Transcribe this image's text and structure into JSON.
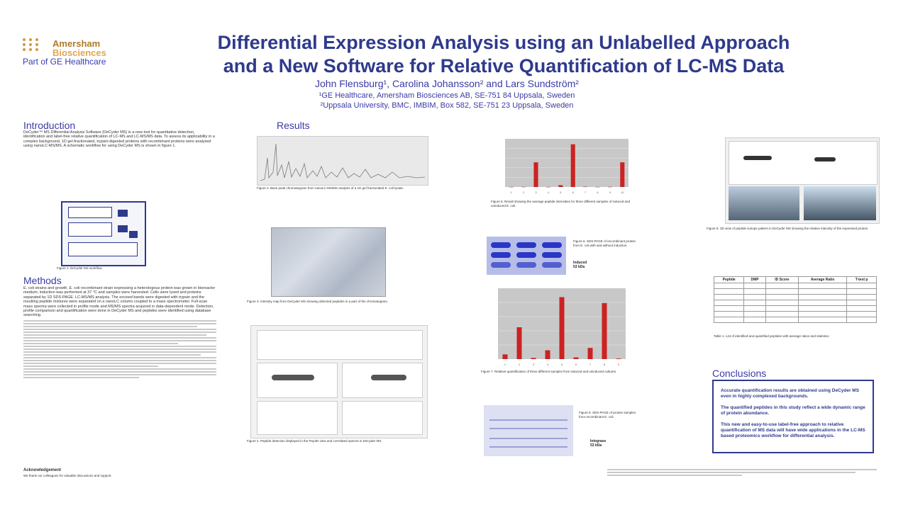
{
  "logo": {
    "name": "Amersham",
    "sub": "Biosciences",
    "ge": "Part of GE Healthcare"
  },
  "title_line1": "Differential Expression Analysis using an Unlabelled Approach",
  "title_line2": "and a New Software for Relative Quantification of LC-MS Data",
  "authors": "John Flensburg¹, Carolina Johansson² and Lars Sundström²",
  "affiliation1": "¹GE Healthcare, Amersham Biosciences AB, SE-751 84 Uppsala, Sweden",
  "affiliation2": "²Uppsala University, BMC, IMBIM, Box 582, SE-751 23 Uppsala, Sweden",
  "sections": {
    "introduction": "Introduction",
    "methods": "Methods",
    "results": "Results",
    "conclusions": "Conclusions",
    "acknowledgement": "Acknowledgement"
  },
  "intro_text": "DeCyder™ MS Differential Analysis Software (DeCyder MS) is a new tool for quantitative detection, identification and label-free relative quantification of LC-MS and LC-MS/MS data. To assess its applicability in a complex background, 1D gel-fractionated, trypsin-digested proteins with recombinant proteins were analysed using nanoLC-MS/MS. A schematic workflow for using DeCyder MS is shown in figure 1.",
  "figure1_caption": "Figure 1. DeCyder MS workflow.",
  "methods_text": "E. coli strains and growth. E. coli recombinant strain expressing a heterologous protein was grown in bioreactor medium; induction was performed at 37 °C and samples were harvested. Cells were lysed and proteins separated by 1D SDS-PAGE. LC-MS/MS analysis. The excised bands were digested with trypsin and the resulting peptide mixtures were separated on a nanoLC column coupled to a mass spectrometer. Full-scan mass spectra were collected in profile mode and MS/MS spectra acquired in data-dependent mode. Detection, profile comparison and quantification were done in DeCyder MS and peptides were identified using database searching.",
  "acknowledgement_text": "We thank our colleagues for valuable discussions and support.",
  "figure_captions": {
    "fig2": "Figure 2. Base peak chromatogram from nanoLC-MS/MS analysis of a 1D gel fractionated E. coli lysate.",
    "fig3": "Figure 3. Intensity map from DeCyder MS showing detected peptides in a part of the chromatogram.",
    "fig4": "Figure 4. Peptide detection displayed in the Pep3D view and correlated spectra in DeCyder MS.",
    "fig5": "Figure 5. Result showing the average peptide intensities for three different samples of induced and uninduced E. coli.",
    "fig6": "Figure 6. SDS-PAGE of recombinant protein from E. coli with and without induction.",
    "fig7": "Figure 7. Relative quantification of three different samples from induced and uninduced cultures.",
    "fig8": "Figure 8. SDS-PAGE of protein samples from recombinant E. coli.",
    "fig9": "Figure 9. 3D view of peptide isotope pattern in DeCyder MS showing the relative intensity of the expressed protein.",
    "table1": "Table 1. List of identified and quantified peptides with average ratios and statistics."
  },
  "gel_labels": {
    "fig6_mark1": "Induced",
    "fig6_mark2": "53 kDa",
    "fig8_mark1": "Integrase",
    "fig8_mark2": "53 kDa"
  },
  "table": {
    "headers": [
      "Peptide",
      "DMP",
      "ID Score",
      "Average Ratio",
      "T-test p"
    ],
    "rows": [
      [
        "",
        "",
        "",
        "",
        ""
      ],
      [
        "",
        "",
        "",
        "",
        ""
      ],
      [
        "",
        "",
        "",
        "",
        ""
      ],
      [
        "",
        "",
        "",
        "",
        ""
      ],
      [
        "",
        "",
        "",
        "",
        ""
      ],
      [
        "",
        "",
        "",
        "",
        ""
      ],
      [
        "",
        "",
        "",
        "",
        ""
      ]
    ]
  },
  "conclusions": [
    "Accurate quantification results are obtained using DeCyder MS even in highly complexed backgrounds.",
    "The quantified peptides in this study reflect a wide dynamic range of protein abundance.",
    "This new and easy-to-use label-free approach to relative quantification of MS data will have wide applications in the LC-MS based proteomics workflow for differential analysis."
  ],
  "colors": {
    "title": "#2e3a8c",
    "heading": "#3a3aa8",
    "bar": "#cc2222",
    "logo": "#d29a3c"
  },
  "chart_data": [
    {
      "type": "bar",
      "categories": [
        "1",
        "2",
        "3",
        "4",
        "5",
        "6",
        "7",
        "8",
        "9",
        "10"
      ],
      "values": [
        0.02,
        0.03,
        4.1,
        0.02,
        0.3,
        7.1,
        0.05,
        0.02,
        0.03,
        4.1
      ],
      "ylim": [
        0,
        8
      ]
    },
    {
      "type": "bar",
      "categories": [
        "1",
        "2",
        "3",
        "4",
        "5",
        "6",
        "7",
        "8",
        "9"
      ],
      "values": [
        0.8,
        5.4,
        0.2,
        1.5,
        10.5,
        0.3,
        1.9,
        9.5,
        0.1
      ],
      "ylim": [
        0,
        12
      ]
    }
  ]
}
